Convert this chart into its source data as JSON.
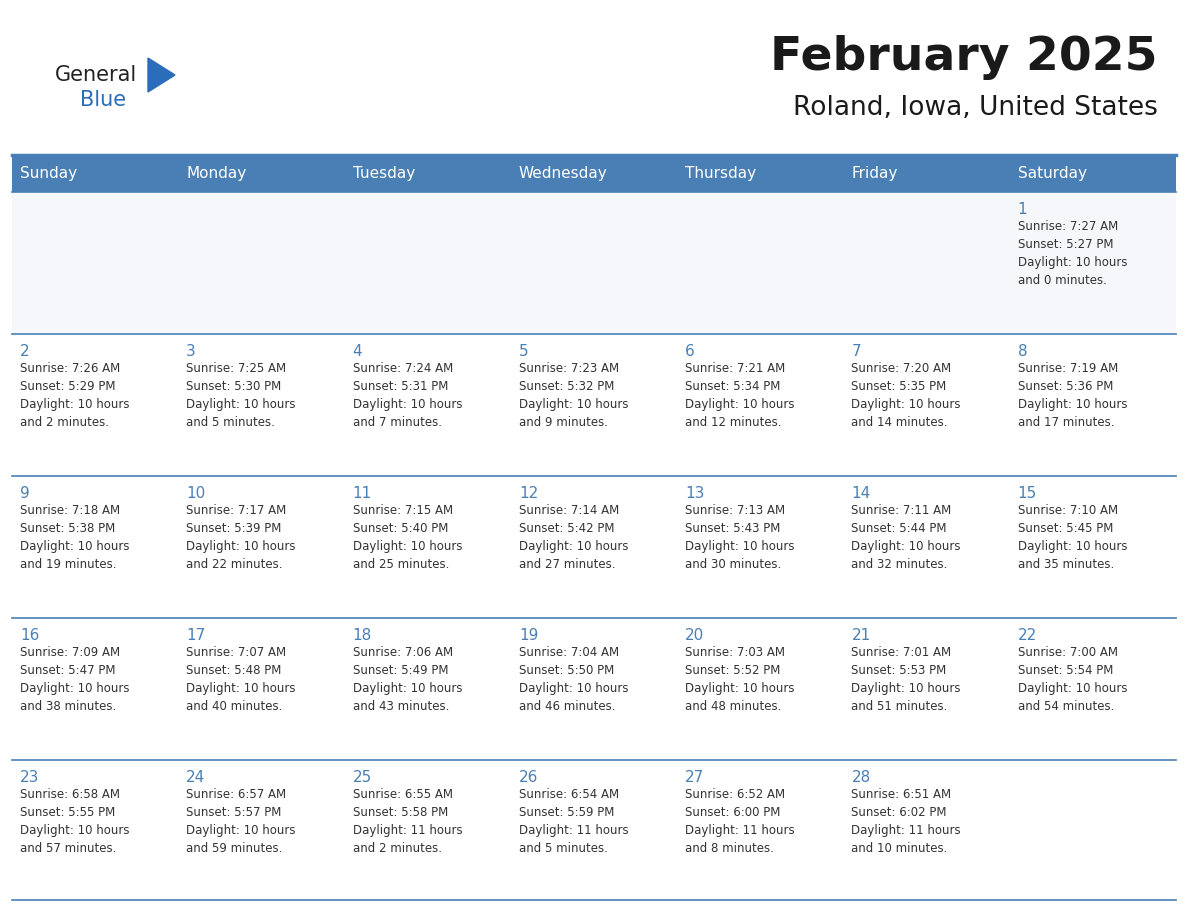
{
  "title": "February 2025",
  "subtitle": "Roland, Iowa, United States",
  "header_bg": "#4a7fb5",
  "header_text_color": "#ffffff",
  "border_color": "#4a7fb5",
  "day_names": [
    "Sunday",
    "Monday",
    "Tuesday",
    "Wednesday",
    "Thursday",
    "Friday",
    "Saturday"
  ],
  "title_color": "#1a1a1a",
  "subtitle_color": "#1a1a1a",
  "day_num_color": "#4a7fb5",
  "cell_text_color": "#333333",
  "logo_general_color": "#222222",
  "logo_blue_color": "#2a6dba",
  "week1_bg": "#f5f7fa",
  "week_bg": "#ffffff",
  "weeks": [
    [
      {
        "day": "",
        "info": ""
      },
      {
        "day": "",
        "info": ""
      },
      {
        "day": "",
        "info": ""
      },
      {
        "day": "",
        "info": ""
      },
      {
        "day": "",
        "info": ""
      },
      {
        "day": "",
        "info": ""
      },
      {
        "day": "1",
        "info": "Sunrise: 7:27 AM\nSunset: 5:27 PM\nDaylight: 10 hours\nand 0 minutes."
      }
    ],
    [
      {
        "day": "2",
        "info": "Sunrise: 7:26 AM\nSunset: 5:29 PM\nDaylight: 10 hours\nand 2 minutes."
      },
      {
        "day": "3",
        "info": "Sunrise: 7:25 AM\nSunset: 5:30 PM\nDaylight: 10 hours\nand 5 minutes."
      },
      {
        "day": "4",
        "info": "Sunrise: 7:24 AM\nSunset: 5:31 PM\nDaylight: 10 hours\nand 7 minutes."
      },
      {
        "day": "5",
        "info": "Sunrise: 7:23 AM\nSunset: 5:32 PM\nDaylight: 10 hours\nand 9 minutes."
      },
      {
        "day": "6",
        "info": "Sunrise: 7:21 AM\nSunset: 5:34 PM\nDaylight: 10 hours\nand 12 minutes."
      },
      {
        "day": "7",
        "info": "Sunrise: 7:20 AM\nSunset: 5:35 PM\nDaylight: 10 hours\nand 14 minutes."
      },
      {
        "day": "8",
        "info": "Sunrise: 7:19 AM\nSunset: 5:36 PM\nDaylight: 10 hours\nand 17 minutes."
      }
    ],
    [
      {
        "day": "9",
        "info": "Sunrise: 7:18 AM\nSunset: 5:38 PM\nDaylight: 10 hours\nand 19 minutes."
      },
      {
        "day": "10",
        "info": "Sunrise: 7:17 AM\nSunset: 5:39 PM\nDaylight: 10 hours\nand 22 minutes."
      },
      {
        "day": "11",
        "info": "Sunrise: 7:15 AM\nSunset: 5:40 PM\nDaylight: 10 hours\nand 25 minutes."
      },
      {
        "day": "12",
        "info": "Sunrise: 7:14 AM\nSunset: 5:42 PM\nDaylight: 10 hours\nand 27 minutes."
      },
      {
        "day": "13",
        "info": "Sunrise: 7:13 AM\nSunset: 5:43 PM\nDaylight: 10 hours\nand 30 minutes."
      },
      {
        "day": "14",
        "info": "Sunrise: 7:11 AM\nSunset: 5:44 PM\nDaylight: 10 hours\nand 32 minutes."
      },
      {
        "day": "15",
        "info": "Sunrise: 7:10 AM\nSunset: 5:45 PM\nDaylight: 10 hours\nand 35 minutes."
      }
    ],
    [
      {
        "day": "16",
        "info": "Sunrise: 7:09 AM\nSunset: 5:47 PM\nDaylight: 10 hours\nand 38 minutes."
      },
      {
        "day": "17",
        "info": "Sunrise: 7:07 AM\nSunset: 5:48 PM\nDaylight: 10 hours\nand 40 minutes."
      },
      {
        "day": "18",
        "info": "Sunrise: 7:06 AM\nSunset: 5:49 PM\nDaylight: 10 hours\nand 43 minutes."
      },
      {
        "day": "19",
        "info": "Sunrise: 7:04 AM\nSunset: 5:50 PM\nDaylight: 10 hours\nand 46 minutes."
      },
      {
        "day": "20",
        "info": "Sunrise: 7:03 AM\nSunset: 5:52 PM\nDaylight: 10 hours\nand 48 minutes."
      },
      {
        "day": "21",
        "info": "Sunrise: 7:01 AM\nSunset: 5:53 PM\nDaylight: 10 hours\nand 51 minutes."
      },
      {
        "day": "22",
        "info": "Sunrise: 7:00 AM\nSunset: 5:54 PM\nDaylight: 10 hours\nand 54 minutes."
      }
    ],
    [
      {
        "day": "23",
        "info": "Sunrise: 6:58 AM\nSunset: 5:55 PM\nDaylight: 10 hours\nand 57 minutes."
      },
      {
        "day": "24",
        "info": "Sunrise: 6:57 AM\nSunset: 5:57 PM\nDaylight: 10 hours\nand 59 minutes."
      },
      {
        "day": "25",
        "info": "Sunrise: 6:55 AM\nSunset: 5:58 PM\nDaylight: 11 hours\nand 2 minutes."
      },
      {
        "day": "26",
        "info": "Sunrise: 6:54 AM\nSunset: 5:59 PM\nDaylight: 11 hours\nand 5 minutes."
      },
      {
        "day": "27",
        "info": "Sunrise: 6:52 AM\nSunset: 6:00 PM\nDaylight: 11 hours\nand 8 minutes."
      },
      {
        "day": "28",
        "info": "Sunrise: 6:51 AM\nSunset: 6:02 PM\nDaylight: 11 hours\nand 10 minutes."
      },
      {
        "day": "",
        "info": ""
      }
    ]
  ]
}
